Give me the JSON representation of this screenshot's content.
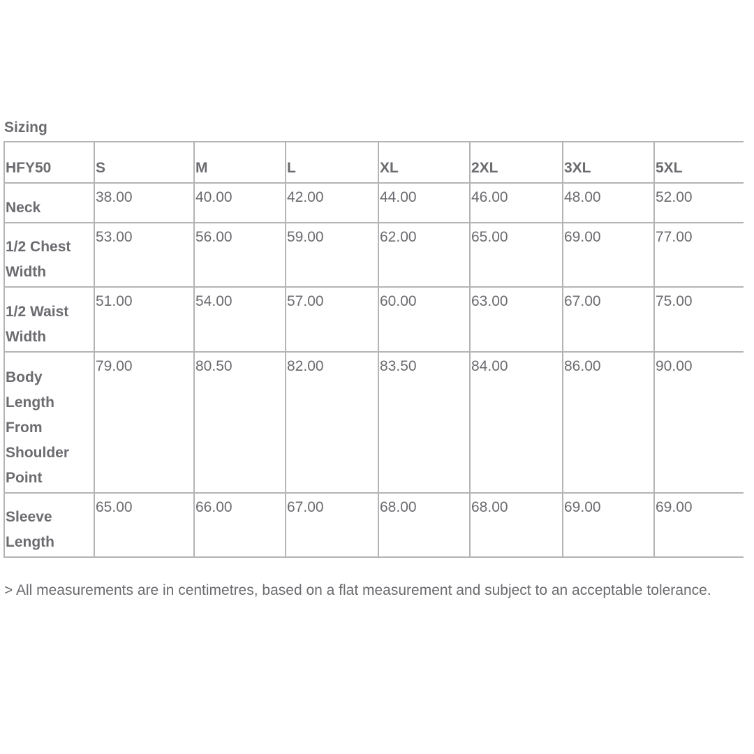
{
  "title": "Sizing",
  "table": {
    "headers": [
      "HFY50",
      "S",
      "M",
      "L",
      "XL",
      "2XL",
      "3XL",
      "5XL"
    ],
    "rows": [
      {
        "label": "Neck",
        "values": [
          "38.00",
          "40.00",
          "42.00",
          "44.00",
          "46.00",
          "48.00",
          "52.00"
        ]
      },
      {
        "label": "1/2 Chest Width",
        "values": [
          "53.00",
          "56.00",
          "59.00",
          "62.00",
          "65.00",
          "69.00",
          "77.00"
        ]
      },
      {
        "label": "1/2 Waist Width",
        "values": [
          "51.00",
          "54.00",
          "57.00",
          "60.00",
          "63.00",
          "67.00",
          "75.00"
        ]
      },
      {
        "label": "Body Length From Shoulder Point",
        "values": [
          "79.00",
          "80.50",
          "82.00",
          "83.50",
          "84.00",
          "86.00",
          "90.00"
        ]
      },
      {
        "label": "Sleeve Length",
        "values": [
          "65.00",
          "66.00",
          "67.00",
          "68.00",
          "68.00",
          "69.00",
          "69.00"
        ]
      }
    ]
  },
  "note": "> All measurements are in centimetres, based on a flat measurement and subject to an acceptable tolerance."
}
